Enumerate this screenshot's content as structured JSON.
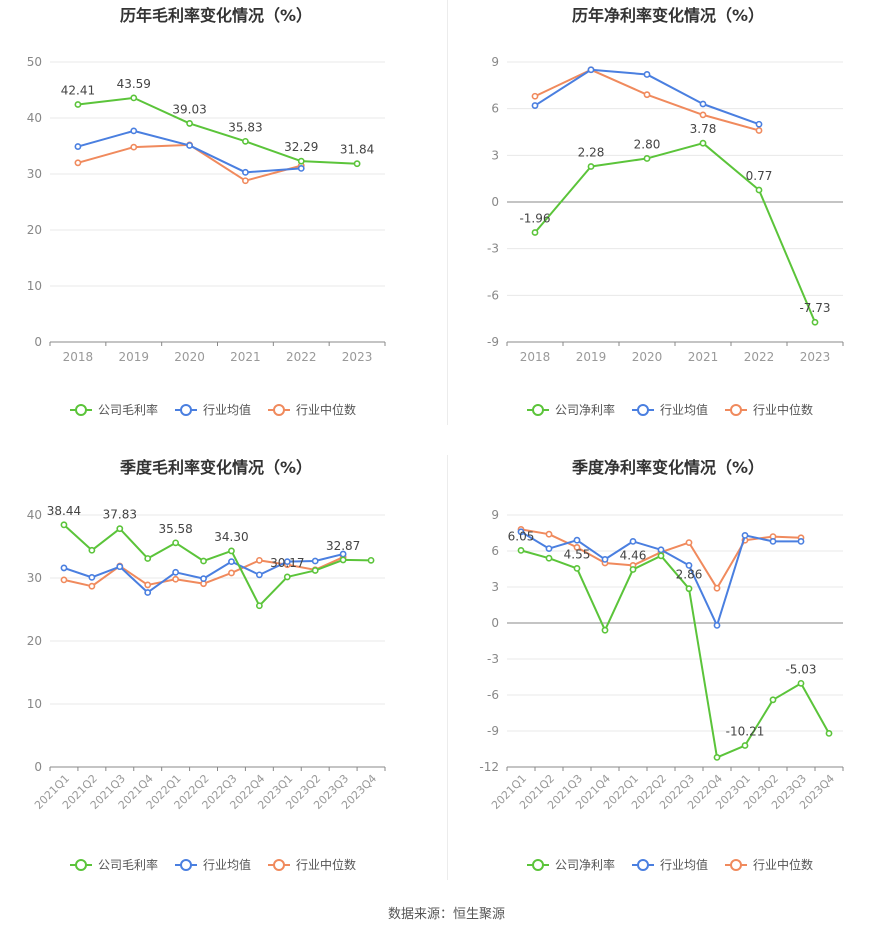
{
  "colors": {
    "company": "#5bc43a",
    "industry_avg": "#4a7fe0",
    "industry_median": "#f08a5d",
    "grid": "#e8e8e8",
    "axis": "#999999"
  },
  "source": "数据来源：恒生聚源",
  "chart_data": [
    {
      "type": "line",
      "title": "历年毛利率变化情况（%）",
      "categories": [
        "2018",
        "2019",
        "2020",
        "2021",
        "2022",
        "2023"
      ],
      "ylim": [
        0,
        50
      ],
      "yticks": [
        0,
        10,
        20,
        30,
        40,
        50
      ],
      "grid": true,
      "legend_position": "bottom",
      "series": [
        {
          "name": "公司毛利率",
          "color": "#5bc43a",
          "labeled": true,
          "values": [
            42.41,
            43.59,
            39.03,
            35.83,
            32.29,
            31.84
          ]
        },
        {
          "name": "行业均值",
          "color": "#4a7fe0",
          "values": [
            34.9,
            37.7,
            35.1,
            30.3,
            31.0,
            null
          ]
        },
        {
          "name": "行业中位数",
          "color": "#f08a5d",
          "values": [
            32.0,
            34.8,
            35.2,
            28.8,
            31.5,
            null
          ]
        }
      ]
    },
    {
      "type": "line",
      "title": "历年净利率变化情况（%）",
      "categories": [
        "2018",
        "2019",
        "2020",
        "2021",
        "2022",
        "2023"
      ],
      "ylim": [
        -9,
        9
      ],
      "yticks": [
        -9,
        -6,
        -3,
        0,
        3,
        6,
        9
      ],
      "grid": true,
      "legend_position": "bottom",
      "series": [
        {
          "name": "公司净利率",
          "color": "#5bc43a",
          "labeled": true,
          "values": [
            -1.96,
            2.28,
            2.8,
            3.78,
            0.77,
            -7.73
          ]
        },
        {
          "name": "行业均值",
          "color": "#4a7fe0",
          "values": [
            6.2,
            8.5,
            8.2,
            6.3,
            5.0,
            null
          ]
        },
        {
          "name": "行业中位数",
          "color": "#f08a5d",
          "values": [
            6.8,
            8.5,
            6.9,
            5.6,
            4.6,
            null
          ]
        }
      ]
    },
    {
      "type": "line",
      "title": "季度毛利率变化情况（%）",
      "categories": [
        "2021Q1",
        "2021Q2",
        "2021Q3",
        "2021Q4",
        "2022Q1",
        "2022Q2",
        "2022Q3",
        "2022Q4",
        "2023Q1",
        "2023Q2",
        "2023Q3",
        "2023Q4"
      ],
      "ylim": [
        0,
        40
      ],
      "yticks": [
        0,
        10,
        20,
        30,
        40
      ],
      "grid": true,
      "legend_position": "bottom",
      "series": [
        {
          "name": "公司毛利率",
          "color": "#5bc43a",
          "values": [
            38.44,
            34.4,
            37.83,
            33.1,
            35.58,
            32.7,
            34.3,
            25.6,
            30.17,
            31.2,
            32.87,
            32.8
          ],
          "labels": [
            "38.44",
            "",
            "37.83",
            "",
            "35.58",
            "",
            "34.30",
            "",
            "30.17",
            "",
            "32.87",
            ""
          ]
        },
        {
          "name": "行业均值",
          "color": "#4a7fe0",
          "values": [
            31.6,
            30.1,
            31.8,
            27.7,
            30.9,
            29.9,
            32.6,
            30.5,
            32.6,
            32.7,
            33.8,
            null
          ]
        },
        {
          "name": "行业中位数",
          "color": "#f08a5d",
          "values": [
            29.7,
            28.7,
            31.9,
            28.9,
            29.8,
            29.1,
            30.8,
            32.8,
            32.1,
            31.3,
            33.3,
            null
          ]
        }
      ]
    },
    {
      "type": "line",
      "title": "季度净利率变化情况（%）",
      "categories": [
        "2021Q1",
        "2021Q2",
        "2021Q3",
        "2021Q4",
        "2022Q1",
        "2022Q2",
        "2022Q3",
        "2022Q4",
        "2023Q1",
        "2023Q2",
        "2023Q3",
        "2023Q4"
      ],
      "ylim": [
        -12,
        9
      ],
      "yticks": [
        -12,
        -9,
        -6,
        -3,
        0,
        3,
        6,
        9
      ],
      "grid": true,
      "legend_position": "bottom",
      "series": [
        {
          "name": "公司净利率",
          "color": "#5bc43a",
          "values": [
            6.05,
            5.4,
            4.55,
            -0.6,
            4.46,
            5.6,
            2.86,
            -11.2,
            -10.21,
            -6.4,
            -5.03,
            -9.2
          ],
          "labels": [
            "6.05",
            "",
            "4.55",
            "",
            "4.46",
            "",
            "2.86",
            "",
            "-10.21",
            "",
            "-5.03",
            ""
          ]
        },
        {
          "name": "行业均值",
          "color": "#4a7fe0",
          "values": [
            7.6,
            6.2,
            6.9,
            5.3,
            6.8,
            6.1,
            4.8,
            -0.2,
            7.3,
            6.8,
            6.8,
            null
          ]
        },
        {
          "name": "行业中位数",
          "color": "#f08a5d",
          "values": [
            7.8,
            7.4,
            6.3,
            5.0,
            4.8,
            5.9,
            6.7,
            2.9,
            6.9,
            7.2,
            7.1,
            null
          ]
        }
      ]
    }
  ]
}
